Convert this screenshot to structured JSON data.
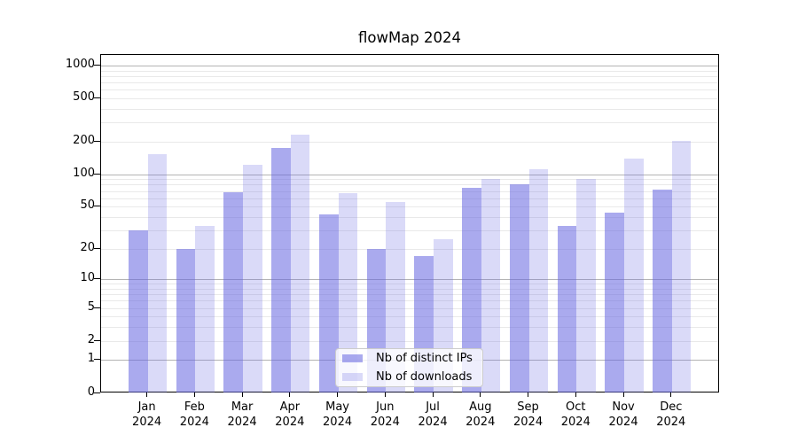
{
  "title": "flowMap 2024",
  "chart_data": {
    "type": "bar",
    "title": "flowMap 2024",
    "categories": [
      {
        "line1": "Jan",
        "line2": "2024"
      },
      {
        "line1": "Feb",
        "line2": "2024"
      },
      {
        "line1": "Mar",
        "line2": "2024"
      },
      {
        "line1": "Apr",
        "line2": "2024"
      },
      {
        "line1": "May",
        "line2": "2024"
      },
      {
        "line1": "Jun",
        "line2": "2024"
      },
      {
        "line1": "Jul",
        "line2": "2024"
      },
      {
        "line1": "Aug",
        "line2": "2024"
      },
      {
        "line1": "Sep",
        "line2": "2024"
      },
      {
        "line1": "Oct",
        "line2": "2024"
      },
      {
        "line1": "Nov",
        "line2": "2024"
      },
      {
        "line1": "Dec",
        "line2": "2024"
      }
    ],
    "series": [
      {
        "name": "Nb of distinct IPs",
        "color": "rgba(100,100,224,0.55)",
        "values": [
          30,
          20,
          69,
          178,
          43,
          20,
          17,
          75,
          81,
          33,
          44,
          73
        ]
      },
      {
        "name": "Nb of downloads",
        "color": "rgba(100,100,224,0.24)",
        "values": [
          154,
          33,
          124,
          233,
          67,
          56,
          25,
          91,
          112,
          92,
          140,
          207
        ]
      }
    ],
    "y_axis": {
      "scale": "log10(value+1)",
      "ticks": [
        0,
        1,
        2,
        5,
        10,
        20,
        50,
        100,
        200,
        500,
        1000
      ],
      "major_gridline_ticks": [
        1,
        10,
        100,
        1000
      ],
      "range": [
        0,
        1264
      ]
    },
    "x_axis": {
      "tick_year": "2024"
    },
    "grid": "horizontal",
    "legend_position": "bottom-center-inside",
    "colors": {
      "axis": "#000000",
      "grid_major": "#b4b4b4",
      "grid_minor": "#e9e9e9",
      "background": "#ffffff",
      "text": "#000000"
    }
  }
}
